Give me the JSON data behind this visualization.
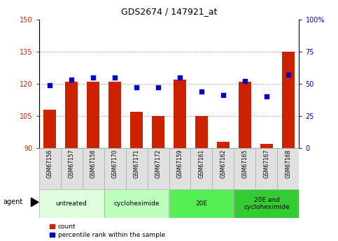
{
  "title": "GDS2674 / 147921_at",
  "samples": [
    "GSM67156",
    "GSM67157",
    "GSM67158",
    "GSM67170",
    "GSM67171",
    "GSM67172",
    "GSM67159",
    "GSM67161",
    "GSM67162",
    "GSM67165",
    "GSM67167",
    "GSM67168"
  ],
  "counts": [
    108,
    121,
    121,
    121,
    107,
    105,
    122,
    105,
    93,
    121,
    92,
    135
  ],
  "percentiles": [
    49,
    53,
    55,
    55,
    47,
    47,
    55,
    44,
    41,
    52,
    40,
    57
  ],
  "ylim_left": [
    90,
    150
  ],
  "ylim_right": [
    0,
    100
  ],
  "yticks_left": [
    90,
    105,
    120,
    135,
    150
  ],
  "yticks_right": [
    0,
    25,
    50,
    75,
    100
  ],
  "bar_color": "#cc2200",
  "dot_color": "#0000cc",
  "grid_ticks": [
    105,
    120,
    135
  ],
  "agent_groups": [
    {
      "label": "untreated",
      "start": 0,
      "end": 3,
      "color": "#ddffdd"
    },
    {
      "label": "cycloheximide",
      "start": 3,
      "end": 6,
      "color": "#bbffbb"
    },
    {
      "label": "20E",
      "start": 6,
      "end": 9,
      "color": "#55ee55"
    },
    {
      "label": "20E and\ncycloheximide",
      "start": 9,
      "end": 12,
      "color": "#33cc33"
    }
  ],
  "legend_count_label": "count",
  "legend_pct_label": "percentile rank within the sample",
  "agent_label": "agent",
  "bar_color_legend": "#cc2200",
  "dot_color_legend": "#0000cc",
  "tick_color_left": "#cc2200",
  "tick_color_right": "#0000cc",
  "sample_box_color": "#e0e0e0",
  "title_fontsize": 9,
  "tick_fontsize": 7,
  "sample_fontsize": 5.5,
  "agent_fontsize": 6.5,
  "legend_fontsize": 6.5
}
